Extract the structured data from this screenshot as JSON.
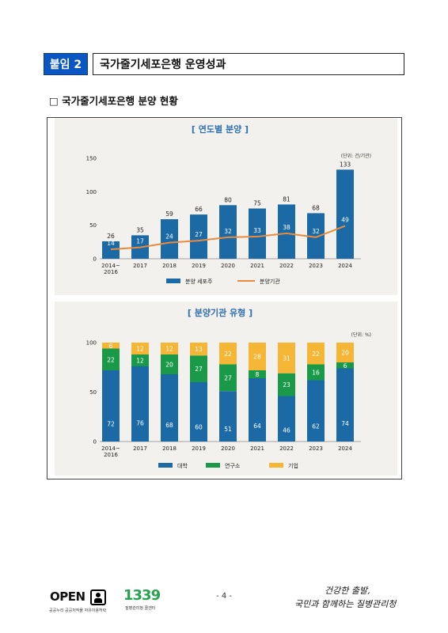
{
  "header": {
    "badge": "붙임 2",
    "title": "국가줄기세포은행 운영성과"
  },
  "section_heading": "□ 국가줄기세포은행 분양 현황",
  "colors": {
    "blue": "#1b6aa5",
    "orange": "#e98a3c",
    "green": "#1a9a48",
    "yellow": "#f5b535",
    "title_blue": "#2e6fb0"
  },
  "chart_data": [
    {
      "type": "bar",
      "title": "[ 연도별 분양 ]",
      "unit": "(단위: 건/기관)",
      "categories": [
        "2014~2016",
        "2017",
        "2018",
        "2019",
        "2020",
        "2021",
        "2022",
        "2023",
        "2024"
      ],
      "category_labels": [
        [
          "2014~",
          "2016"
        ],
        [
          "2017"
        ],
        [
          "2018"
        ],
        [
          "2019"
        ],
        [
          "2020"
        ],
        [
          "2021"
        ],
        [
          "2022"
        ],
        [
          "2023"
        ],
        [
          "2024"
        ]
      ],
      "series": [
        {
          "name": "분양 세포주",
          "type": "bar",
          "values": [
            26,
            35,
            59,
            66,
            80,
            75,
            81,
            68,
            133
          ]
        },
        {
          "name": "분양기관",
          "type": "line",
          "values": [
            14,
            17,
            24,
            27,
            32,
            33,
            38,
            32,
            49
          ]
        }
      ],
      "ylim": [
        0,
        150
      ],
      "yticks": [
        0,
        50,
        100,
        150
      ],
      "grid": false,
      "legend_position": "bottom"
    },
    {
      "type": "bar",
      "stacked": true,
      "title": "[ 분양기관 유형 ]",
      "unit": "(단위: %)",
      "categories": [
        "2014~2016",
        "2017",
        "2018",
        "2019",
        "2020",
        "2021",
        "2022",
        "2023",
        "2024"
      ],
      "category_labels": [
        [
          "2014~",
          "2016"
        ],
        [
          "2017"
        ],
        [
          "2018"
        ],
        [
          "2019"
        ],
        [
          "2020"
        ],
        [
          "2021"
        ],
        [
          "2022"
        ],
        [
          "2023"
        ],
        [
          "2024"
        ]
      ],
      "series": [
        {
          "name": "대학",
          "values": [
            72,
            76,
            68,
            60,
            51,
            64,
            46,
            62,
            74
          ]
        },
        {
          "name": "연구소",
          "values": [
            22,
            12,
            20,
            27,
            27,
            8,
            23,
            16,
            6
          ]
        },
        {
          "name": "기업",
          "values": [
            6,
            12,
            12,
            13,
            22,
            28,
            31,
            22,
            20
          ]
        }
      ],
      "ylim": [
        0,
        100
      ],
      "yticks": [
        0,
        50,
        100
      ],
      "grid": false,
      "legend_position": "bottom"
    }
  ],
  "footer": {
    "open_logo_text": "OPEN",
    "open_logo_sub": "공공누리 공공저작물 자유이용허락",
    "logo_1339": "1339",
    "logo_1339_sub": "질병관리청 콜센터",
    "page_number": "- 4 -",
    "slogan_line1": "건강한 출발,",
    "slogan_line2": "국민과 함께하는 질병관리청"
  }
}
